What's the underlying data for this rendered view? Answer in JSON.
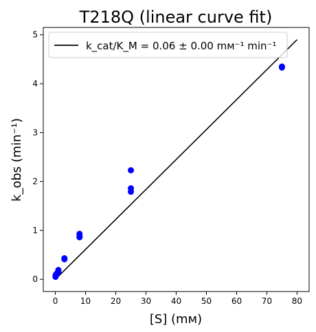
{
  "chart_data": {
    "type": "scatter",
    "title": "T218Q (linear curve fit)",
    "xlabel": "[S] (mм)",
    "ylabel": "k_obs (min⁻¹)",
    "xlim": [
      -4,
      84
    ],
    "ylim": [
      -0.25,
      5.15
    ],
    "x_ticks": [
      0,
      10,
      20,
      30,
      40,
      50,
      60,
      70,
      80
    ],
    "y_ticks": [
      0,
      1,
      2,
      3,
      4,
      5
    ],
    "grid": false,
    "legend_position": "top",
    "legend": [
      {
        "label": "k_cat/K_M = 0.06 ± 0.00 mм⁻¹ min⁻¹",
        "marker": "line",
        "color": "#000000"
      }
    ],
    "series": [
      {
        "kind": "scatter",
        "color": "#0000ff",
        "points": [
          {
            "x": 0.05,
            "y": 0.05
          },
          {
            "x": 0.1,
            "y": 0.08
          },
          {
            "x": 0.2,
            "y": 0.1
          },
          {
            "x": 0.5,
            "y": 0.12
          },
          {
            "x": 1.0,
            "y": 0.15
          },
          {
            "x": 1.0,
            "y": 0.19
          },
          {
            "x": 3.0,
            "y": 0.41
          },
          {
            "x": 3.0,
            "y": 0.43
          },
          {
            "x": 8.0,
            "y": 0.86
          },
          {
            "x": 8.0,
            "y": 0.88
          },
          {
            "x": 8.0,
            "y": 0.93
          },
          {
            "x": 25.0,
            "y": 1.79
          },
          {
            "x": 25.0,
            "y": 1.86
          },
          {
            "x": 25.0,
            "y": 2.23
          },
          {
            "x": 75.0,
            "y": 4.33
          },
          {
            "x": 75.0,
            "y": 4.35
          }
        ]
      },
      {
        "kind": "line",
        "color": "#000000",
        "points": [
          {
            "x": 0,
            "y": 0
          },
          {
            "x": 80,
            "y": 4.9
          }
        ]
      }
    ]
  }
}
